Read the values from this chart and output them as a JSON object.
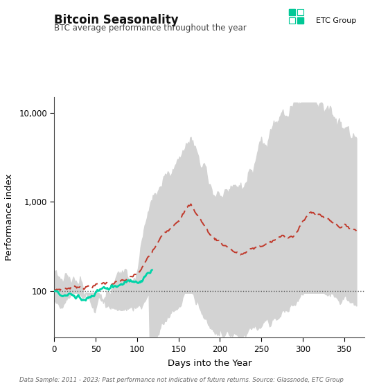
{
  "title": "Bitcoin Seasonality",
  "subtitle": "BTC average performance throughout the year",
  "xlabel": "Days into the Year",
  "ylabel": "Performance index",
  "footnote": "Data Sample: 2011 - 2023; Past performance not indicative of future returns. Source: Glassnode, ETC Group",
  "yticks": [
    100,
    1000,
    10000
  ],
  "xticks": [
    0,
    50,
    100,
    150,
    200,
    250,
    300,
    350
  ],
  "xmin": 0,
  "xmax": 375,
  "ymin": 30,
  "ymax": 15000,
  "hline_y": 100,
  "bg_color": "#ffffff",
  "fill_color": "#d3d3d3",
  "line_2024_color": "#00d4a8",
  "line_avg_color": "#c0392b",
  "title_color": "#111111",
  "subtitle_color": "#444444",
  "footnote_color": "#666666",
  "etc_color": "#00c896"
}
